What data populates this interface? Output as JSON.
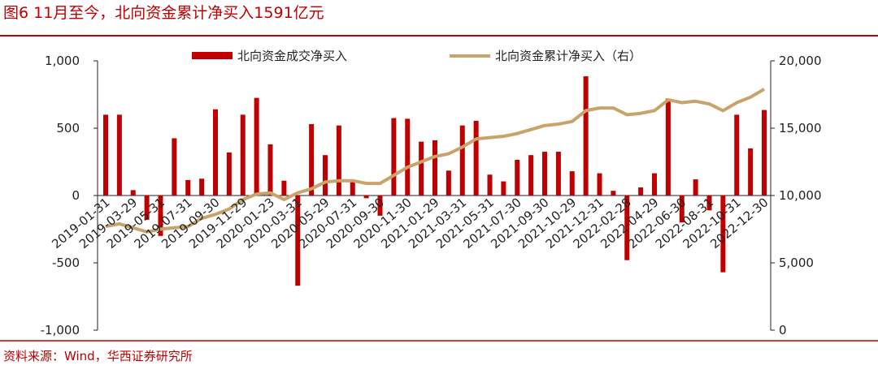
{
  "chart_data": {
    "type": "bar_line",
    "title": "图6 11月至今，北向资金累计净买入1591亿元",
    "source": "资料来源：Wind，华西证券研究所",
    "categories": [
      "2019-01-31",
      null,
      "2019-03-29",
      null,
      "2019-05-31",
      null,
      "2019-07-31",
      null,
      "2019-09-30",
      null,
      "2019-11-29",
      null,
      "2020-01-23",
      null,
      "2020-03-31",
      null,
      "2020-05-29",
      null,
      "2020-07-31",
      null,
      "2020-09-30",
      null,
      "2020-11-30",
      null,
      "2021-01-29",
      null,
      "2021-03-31",
      null,
      "2021-05-31",
      null,
      "2021-07-30",
      null,
      "2021-09-30",
      null,
      "2021-10-29",
      null,
      "2021-12-31",
      null,
      "2022-02-28",
      null,
      "2022-04-29",
      null,
      "2022-06-30",
      null,
      "2022-08-31",
      null,
      "2022-10-31",
      null,
      "2022-12-30"
    ],
    "series": [
      {
        "name": "北向资金成交净买入",
        "color": "#c00000",
        "type": "bar",
        "values": [
          600,
          600,
          40,
          -180,
          -300,
          425,
          115,
          125,
          640,
          320,
          600,
          725,
          380,
          110,
          -670,
          530,
          300,
          520,
          100,
          -20,
          -150,
          575,
          570,
          400,
          410,
          185,
          520,
          555,
          155,
          105,
          265,
          300,
          325,
          325,
          180,
          885,
          165,
          35,
          -480,
          60,
          165,
          720,
          -200,
          120,
          -110,
          -570,
          600,
          350,
          635
        ]
      },
      {
        "name": "北向资金累计净买入（右）",
        "color": "#c8a46a",
        "type": "line",
        "axis": "y2",
        "values": [
          7700,
          7900,
          7600,
          7300,
          7500,
          7600,
          7700,
          8300,
          8600,
          9000,
          9700,
          10100,
          10200,
          9700,
          10200,
          10500,
          11000,
          11100,
          11100,
          10900,
          10900,
          11500,
          12100,
          12500,
          12900,
          13100,
          13600,
          14200,
          14300,
          14400,
          14600,
          14900,
          15200,
          15300,
          15500,
          16300,
          16500,
          16500,
          16000,
          16100,
          16300,
          17100,
          16900,
          17000,
          16800,
          16300,
          16900,
          17300,
          17900
        ]
      }
    ],
    "ylim": [
      -1000,
      1000
    ],
    "yticks": [
      {
        "value": -1000,
        "label": "-1,000"
      },
      -500,
      0,
      500,
      {
        "value": 1000,
        "label": "1,000"
      }
    ],
    "y2lim": [
      0,
      20000
    ],
    "y2ticks": [
      0,
      {
        "value": 5000,
        "label": "5,000"
      },
      {
        "value": 10000,
        "label": "10,000"
      },
      {
        "value": 15000,
        "label": "15,000"
      },
      {
        "value": 20000,
        "label": "20,000"
      }
    ]
  }
}
